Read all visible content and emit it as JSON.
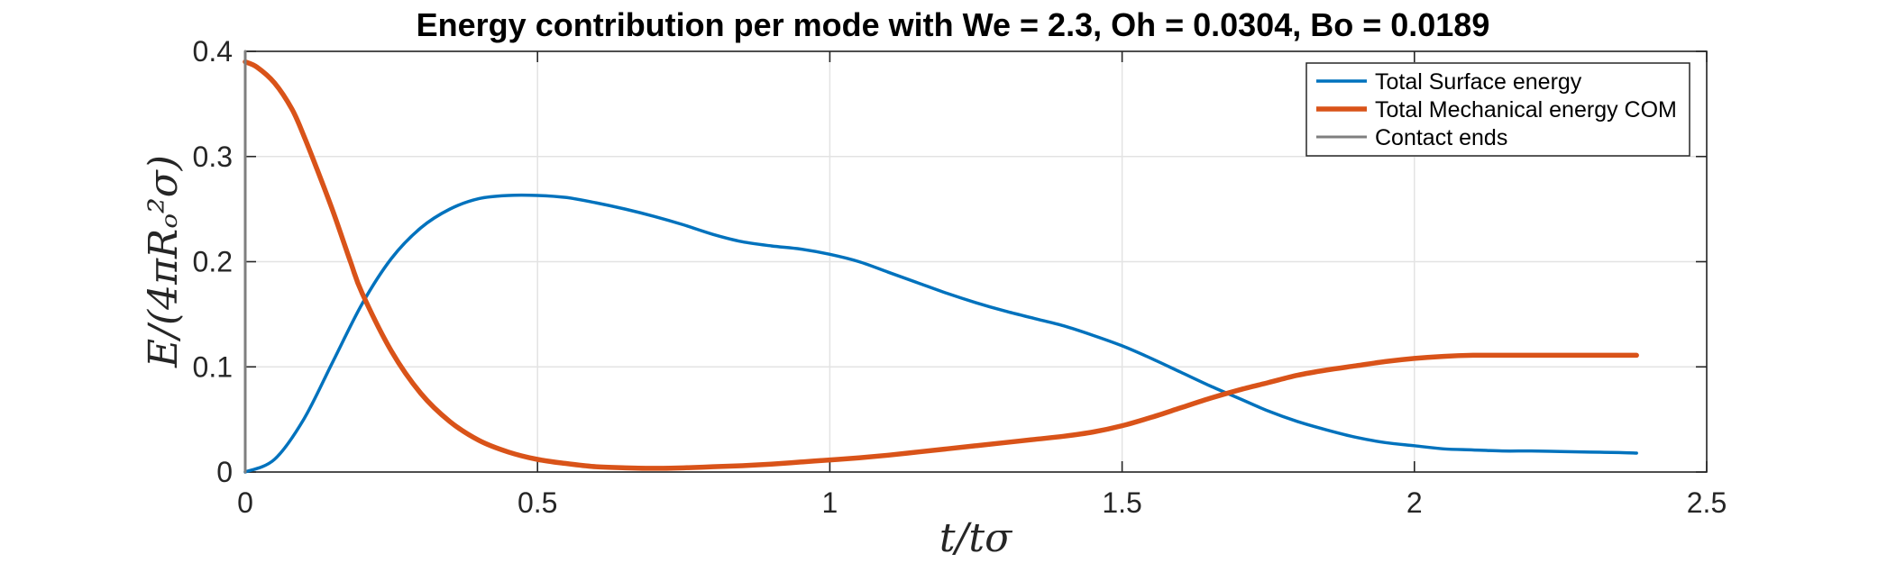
{
  "chart_data": {
    "type": "line",
    "title": "Energy contribution per mode with We = 2.3, Oh = 0.0304, Bo = 0.0189",
    "xlabel": "t/tσ",
    "ylabel": "E/(4πRₒ²σ)",
    "xlim": [
      0,
      2.5
    ],
    "ylim": [
      0,
      0.4
    ],
    "xticks": [
      0,
      0.5,
      1,
      1.5,
      2,
      2.5
    ],
    "xtick_labels": [
      "0",
      "0.5",
      "1",
      "1.5",
      "2",
      "2.5"
    ],
    "yticks": [
      0,
      0.1,
      0.2,
      0.3,
      0.4
    ],
    "ytick_labels": [
      "0",
      "0.1",
      "0.2",
      "0.3",
      "0.4"
    ],
    "grid": true,
    "legend_position": "top-right",
    "series": [
      {
        "name": "Total Surface energy",
        "color": "#0072BD",
        "x": [
          0,
          0.05,
          0.1,
          0.15,
          0.2,
          0.25,
          0.3,
          0.35,
          0.4,
          0.45,
          0.5,
          0.55,
          0.6,
          0.65,
          0.7,
          0.75,
          0.8,
          0.85,
          0.9,
          0.95,
          1.0,
          1.05,
          1.1,
          1.15,
          1.2,
          1.25,
          1.3,
          1.35,
          1.4,
          1.45,
          1.5,
          1.55,
          1.6,
          1.65,
          1.7,
          1.75,
          1.8,
          1.85,
          1.9,
          1.95,
          2.0,
          2.05,
          2.1,
          2.15,
          2.2,
          2.25,
          2.3,
          2.35,
          2.38
        ],
        "y": [
          0.0,
          0.012,
          0.05,
          0.105,
          0.16,
          0.203,
          0.232,
          0.25,
          0.26,
          0.263,
          0.263,
          0.261,
          0.256,
          0.25,
          0.243,
          0.235,
          0.226,
          0.219,
          0.215,
          0.212,
          0.207,
          0.2,
          0.19,
          0.18,
          0.17,
          0.161,
          0.153,
          0.146,
          0.139,
          0.13,
          0.12,
          0.108,
          0.095,
          0.082,
          0.07,
          0.058,
          0.048,
          0.04,
          0.033,
          0.028,
          0.025,
          0.022,
          0.021,
          0.02,
          0.02,
          0.0195,
          0.019,
          0.0185,
          0.018
        ]
      },
      {
        "name": "Total Mechanical energy COM",
        "color": "#D95319",
        "x": [
          0,
          0.02,
          0.05,
          0.08,
          0.1,
          0.12,
          0.15,
          0.18,
          0.2,
          0.25,
          0.3,
          0.35,
          0.4,
          0.45,
          0.5,
          0.55,
          0.6,
          0.65,
          0.7,
          0.75,
          0.8,
          0.85,
          0.9,
          0.95,
          1.0,
          1.05,
          1.1,
          1.15,
          1.2,
          1.25,
          1.3,
          1.35,
          1.4,
          1.45,
          1.5,
          1.55,
          1.6,
          1.65,
          1.7,
          1.75,
          1.8,
          1.85,
          1.9,
          1.95,
          2.0,
          2.05,
          2.1,
          2.15,
          2.2,
          2.25,
          2.3,
          2.35,
          2.38
        ],
        "y": [
          0.39,
          0.385,
          0.37,
          0.345,
          0.32,
          0.292,
          0.248,
          0.2,
          0.17,
          0.115,
          0.075,
          0.048,
          0.03,
          0.019,
          0.012,
          0.008,
          0.005,
          0.004,
          0.0035,
          0.004,
          0.005,
          0.006,
          0.0075,
          0.0095,
          0.0115,
          0.0135,
          0.016,
          0.019,
          0.022,
          0.025,
          0.028,
          0.031,
          0.034,
          0.038,
          0.044,
          0.052,
          0.061,
          0.07,
          0.078,
          0.085,
          0.092,
          0.097,
          0.101,
          0.105,
          0.108,
          0.11,
          0.111,
          0.111,
          0.111,
          0.111,
          0.111,
          0.111,
          0.111
        ]
      },
      {
        "name": "Contact ends",
        "color": "#7F7F7F",
        "x": [
          0,
          0
        ],
        "y": [
          0,
          0.4
        ]
      }
    ]
  }
}
